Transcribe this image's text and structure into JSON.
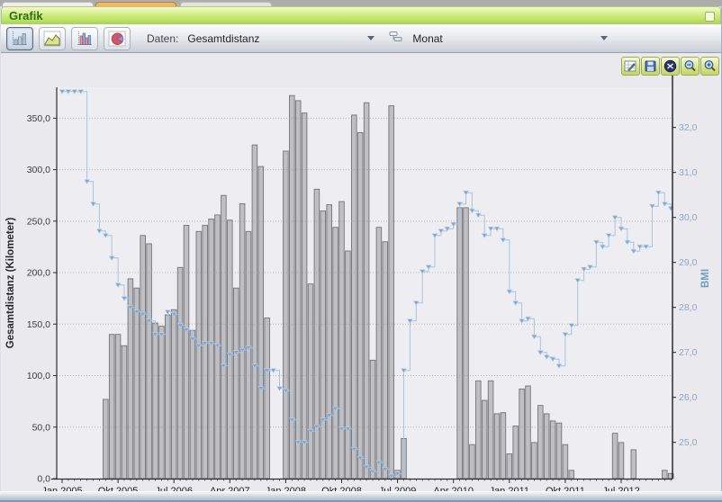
{
  "window": {
    "panel_title": "Grafik",
    "tabs_note": "three cut-off tab stubs at top edge, middle one orange"
  },
  "toolbar": {
    "daten_label": "Daten:",
    "daten_value": "Gesamtdistanz",
    "group_value": "Monat",
    "chart_type_buttons": [
      {
        "name": "bar-chart",
        "selected": true
      },
      {
        "name": "area-chart",
        "selected": false
      },
      {
        "name": "grouped-bar-chart",
        "selected": false
      },
      {
        "name": "pie-chart",
        "selected": false
      }
    ]
  },
  "mini_toolbar": {
    "buttons": [
      "export-chart",
      "save-chart",
      "reset-view",
      "zoom-out",
      "zoom-in"
    ]
  },
  "colors": {
    "header_green": "#aada52",
    "tab_orange": "#eeb868",
    "bar_fill": "#bfbfc4",
    "bar_stroke": "#737378",
    "bmi_line": "#a9c4de",
    "bmi_marker": "#7fa8d0",
    "right_axis_text": "#8ba8cb",
    "left_axis_text": "#3c3c42",
    "plot_bg": "#ededf2",
    "grid": "#90909a"
  },
  "chart_data": {
    "type": "bar",
    "subtype": "combo: monthly bars (distance) + step line with markers (BMI)",
    "title": "",
    "x_axis": {
      "unit": "Monat",
      "start": "Jan 2005",
      "n_months": 99,
      "tick_interval_months": 9,
      "tick_labels": [
        "Jan 2005",
        "Okt 2005",
        "Jul 2006",
        "Apr 2007",
        "Jan 2008",
        "Okt 2008",
        "Jul 2009",
        "Apr 2010",
        "Jan 2011",
        "Okt 2011",
        "Jul 2012"
      ]
    },
    "y_left": {
      "label": "Gesamtdistanz (Kilometer)",
      "tick_labels": [
        "0,0",
        "50,0",
        "100,0",
        "150,0",
        "200,0",
        "250,0",
        "300,0",
        "350,0"
      ],
      "min": 0,
      "max": 380,
      "grid": "dotted"
    },
    "y_right": {
      "label": "BMI",
      "tick_labels": [
        "25,0",
        "26,0",
        "27,0",
        "28,0",
        "29,0",
        "30,0",
        "31,0",
        "32,0"
      ],
      "min": 24.2,
      "max": 32.9
    },
    "series": [
      {
        "name": "Gesamtdistanz",
        "type": "bar",
        "unit": "km",
        "values": [
          null,
          null,
          null,
          null,
          null,
          null,
          null,
          77,
          140,
          140,
          129,
          194,
          185,
          236,
          228,
          151,
          148,
          159,
          164,
          205,
          246,
          144,
          240,
          246,
          252,
          256,
          275,
          251,
          185,
          267,
          240,
          324,
          303,
          156,
          null,
          null,
          318,
          372,
          367,
          355,
          189,
          281,
          260,
          266,
          244,
          269,
          221,
          353,
          336,
          365,
          115,
          244,
          230,
          362,
          8,
          39,
          null,
          null,
          null,
          null,
          null,
          null,
          null,
          null,
          263,
          263,
          33,
          95,
          76,
          95,
          63,
          64,
          24,
          51,
          87,
          90,
          35,
          71,
          63,
          56,
          54,
          33,
          8,
          null,
          null,
          null,
          null,
          null,
          null,
          44,
          35,
          null,
          28,
          null,
          null,
          null,
          null,
          8,
          5
        ]
      },
      {
        "name": "BMI",
        "type": "step-line",
        "values": [
          32.8,
          32.8,
          32.8,
          32.8,
          30.8,
          30.3,
          29.7,
          29.6,
          29.1,
          28.5,
          28.2,
          28.0,
          27.9,
          27.85,
          27.7,
          27.4,
          27.4,
          27.9,
          27.85,
          27.6,
          27.5,
          27.3,
          27.15,
          27.2,
          27.2,
          27.15,
          26.7,
          26.95,
          27.0,
          27.05,
          27.1,
          26.7,
          26.2,
          26.6,
          26.6,
          26.2,
          26.15,
          25.5,
          25.0,
          25.0,
          25.25,
          25.35,
          25.5,
          25.6,
          25.75,
          25.3,
          25.3,
          24.85,
          24.65,
          24.45,
          24.35,
          24.55,
          24.4,
          24.25,
          24.3,
          26.6,
          27.7,
          28.1,
          28.8,
          28.9,
          29.6,
          29.7,
          29.75,
          29.85,
          30.3,
          30.55,
          30.15,
          30.05,
          29.6,
          29.75,
          29.75,
          29.5,
          28.35,
          28.1,
          27.7,
          27.75,
          27.35,
          27.0,
          26.9,
          26.85,
          26.7,
          27.4,
          27.6,
          28.6,
          28.85,
          28.9,
          29.45,
          29.35,
          29.6,
          30.0,
          29.75,
          29.45,
          29.25,
          29.35,
          29.35,
          30.25,
          30.55,
          30.3,
          30.2
        ]
      }
    ]
  }
}
